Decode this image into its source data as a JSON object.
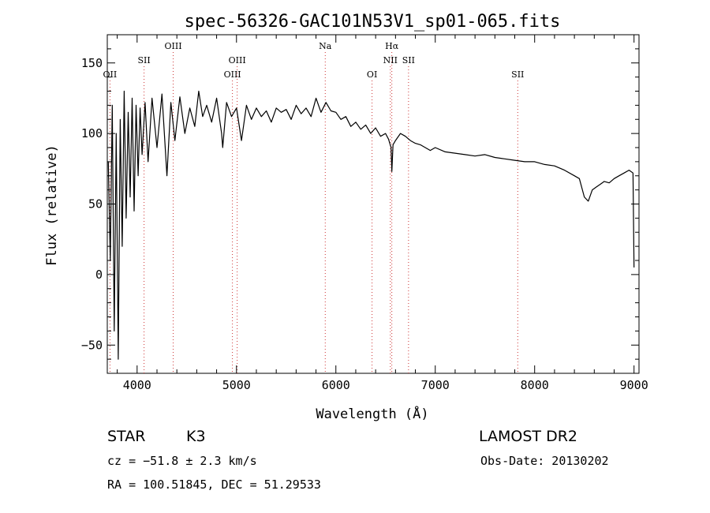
{
  "chart_data": {
    "type": "line",
    "title": "spec-56326-GAC101N53V1_sp01-065.fits",
    "xlabel": "Wavelength (Å)",
    "ylabel": "Flux (relative)",
    "xlim": [
      3700,
      9050
    ],
    "ylim": [
      -70,
      170
    ],
    "xticks": [
      4000,
      5000,
      6000,
      7000,
      8000,
      9000
    ],
    "yticks": [
      -50,
      0,
      50,
      100,
      150
    ],
    "xtick_labels": [
      "4000",
      "5000",
      "6000",
      "7000",
      "8000",
      "9000"
    ],
    "ytick_labels": [
      "−50",
      "0",
      "50",
      "100",
      "150"
    ],
    "grid": false,
    "series": [
      {
        "name": "flux",
        "x": [
          3710,
          3730,
          3750,
          3770,
          3790,
          3810,
          3830,
          3850,
          3870,
          3890,
          3910,
          3930,
          3950,
          3970,
          3990,
          4010,
          4030,
          4050,
          4080,
          4110,
          4150,
          4200,
          4250,
          4300,
          4340,
          4380,
          4430,
          4480,
          4530,
          4580,
          4620,
          4660,
          4700,
          4750,
          4800,
          4850,
          4861,
          4900,
          4950,
          5000,
          5050,
          5100,
          5150,
          5200,
          5250,
          5300,
          5350,
          5400,
          5450,
          5500,
          5550,
          5600,
          5650,
          5700,
          5750,
          5800,
          5850,
          5900,
          5950,
          6000,
          6050,
          6100,
          6150,
          6200,
          6250,
          6300,
          6350,
          6400,
          6450,
          6500,
          6530,
          6555,
          6563,
          6575,
          6600,
          6650,
          6700,
          6750,
          6800,
          6850,
          6900,
          6950,
          7000,
          7100,
          7200,
          7300,
          7400,
          7500,
          7600,
          7700,
          7800,
          7900,
          8000,
          8100,
          8200,
          8300,
          8400,
          8450,
          8500,
          8540,
          8580,
          8620,
          8660,
          8700,
          8750,
          8800,
          8850,
          8900,
          8950,
          8990,
          9000
        ],
        "y": [
          80,
          10,
          120,
          -40,
          100,
          -60,
          110,
          20,
          130,
          40,
          115,
          55,
          125,
          45,
          120,
          70,
          118,
          85,
          122,
          80,
          125,
          90,
          128,
          70,
          122,
          95,
          126,
          100,
          118,
          105,
          130,
          112,
          120,
          108,
          125,
          100,
          90,
          122,
          112,
          118,
          95,
          120,
          110,
          118,
          112,
          116,
          108,
          118,
          115,
          117,
          110,
          120,
          114,
          118,
          112,
          125,
          115,
          122,
          116,
          115,
          110,
          112,
          105,
          108,
          103,
          106,
          100,
          104,
          98,
          100,
          96,
          90,
          73,
          92,
          95,
          100,
          98,
          95,
          93,
          92,
          90,
          88,
          90,
          87,
          86,
          85,
          84,
          85,
          83,
          82,
          81,
          80,
          80,
          78,
          77,
          74,
          70,
          68,
          55,
          52,
          60,
          62,
          64,
          66,
          65,
          68,
          70,
          72,
          74,
          72,
          5
        ]
      }
    ],
    "lines": [
      {
        "label": "OII",
        "x": 3727,
        "label_row": 2
      },
      {
        "label": "SII",
        "x": 4070,
        "label_row": 1
      },
      {
        "label": "OIII",
        "x": 4363,
        "label_row": 0
      },
      {
        "label": "OIII",
        "x": 4959,
        "label_row": 2
      },
      {
        "label": "OIII",
        "x": 5007,
        "label_row": 1
      },
      {
        "label": "Na",
        "x": 5893,
        "label_row": 0
      },
      {
        "label": "OI",
        "x": 6364,
        "label_row": 2
      },
      {
        "label": "Hα",
        "x": 6563,
        "label_row": 0
      },
      {
        "label": "NII",
        "x": 6548,
        "label_row": 1
      },
      {
        "label": "SII",
        "x": 6731,
        "label_row": 1
      },
      {
        "label": "SII",
        "x": 7830,
        "label_row": 2
      }
    ]
  },
  "info": {
    "object_class": "STAR",
    "subclass": "K3",
    "survey": "LAMOST DR2",
    "cz": "cz = −51.8 ± 2.3 km/s",
    "obs_date": "Obs-Date: 20130202",
    "coords": "RA = 100.51845, DEC =  51.29533"
  },
  "colors": {
    "axis": "#000000",
    "spectrum": "#000000",
    "line_marker": "#cc3333",
    "background": "#ffffff"
  }
}
